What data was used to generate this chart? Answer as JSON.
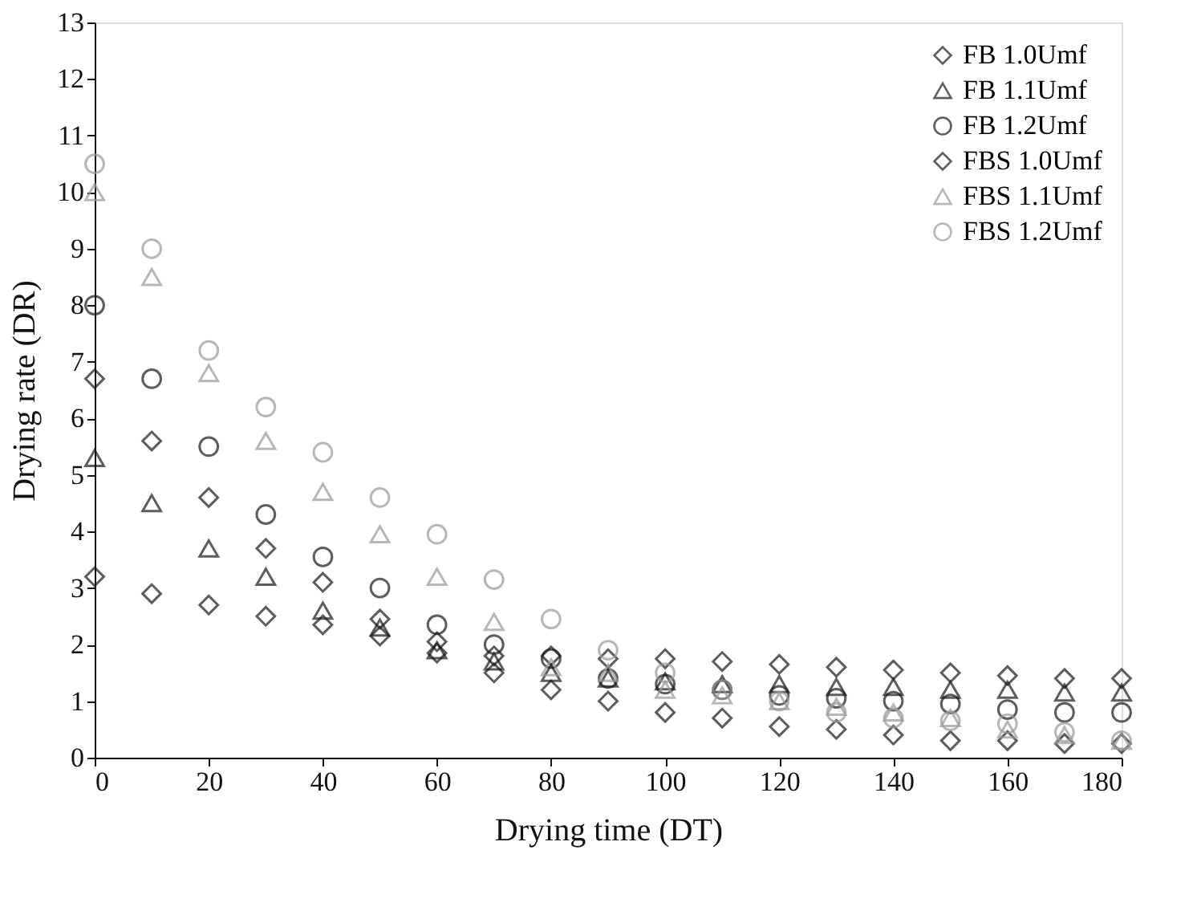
{
  "chart_data": {
    "type": "scatter",
    "xlabel": "Drying time (DT)",
    "ylabel": "Drying rate (DR)",
    "x": [
      0,
      10,
      20,
      30,
      40,
      50,
      60,
      70,
      80,
      90,
      100,
      110,
      120,
      130,
      140,
      150,
      160,
      170,
      180
    ],
    "xlim": [
      0,
      180
    ],
    "xticks": [
      0,
      20,
      40,
      60,
      80,
      100,
      120,
      140,
      160,
      180
    ],
    "ylim": [
      0,
      13
    ],
    "yticks": [
      0,
      1,
      2,
      3,
      4,
      5,
      6,
      7,
      8,
      9,
      10,
      11,
      12,
      13
    ],
    "grid": false,
    "legend": "top right",
    "series": [
      {
        "name": "FB 1.0Umf",
        "color": "#1a1a1a",
        "marker": "diamond",
        "values": [
          3.2,
          2.9,
          2.7,
          2.5,
          2.35,
          2.15,
          1.85,
          1.5,
          1.2,
          1.0,
          0.8,
          0.7,
          0.55,
          0.5,
          0.4,
          0.3,
          0.3,
          0.25,
          0.25
        ]
      },
      {
        "name": "FB 1.1Umf",
        "color": "#1a1a1a",
        "marker": "triangle",
        "values": [
          5.3,
          4.5,
          3.7,
          3.2,
          2.6,
          2.3,
          1.9,
          1.7,
          1.5,
          1.4,
          1.35,
          1.3,
          1.3,
          1.25,
          1.25,
          1.2,
          1.2,
          1.15,
          1.15
        ]
      },
      {
        "name": "FB 1.2Umf",
        "color": "#1a1a1a",
        "marker": "circle",
        "values": [
          8.0,
          6.7,
          5.5,
          4.3,
          3.55,
          3.0,
          2.35,
          2.0,
          1.75,
          1.4,
          1.3,
          1.2,
          1.1,
          1.05,
          1.0,
          0.95,
          0.85,
          0.8,
          0.8
        ]
      },
      {
        "name": "FBS 1.0Umf",
        "color": "#1a1a1a",
        "marker": "diamond",
        "values": [
          6.7,
          5.6,
          4.6,
          3.7,
          3.1,
          2.45,
          2.05,
          1.8,
          1.8,
          1.75,
          1.75,
          1.7,
          1.65,
          1.6,
          1.55,
          1.5,
          1.45,
          1.4,
          1.4
        ]
      },
      {
        "name": "FBS 1.1Umf",
        "color": "#9a9a9a",
        "marker": "triangle",
        "values": [
          10.0,
          8.5,
          6.8,
          5.6,
          4.7,
          3.95,
          3.2,
          2.4,
          1.6,
          1.5,
          1.2,
          1.1,
          1.0,
          0.9,
          0.8,
          0.7,
          0.5,
          0.4,
          0.3
        ]
      },
      {
        "name": "FBS 1.2Umf",
        "color": "#9a9a9a",
        "marker": "circle",
        "values": [
          10.5,
          9.0,
          7.2,
          6.2,
          5.4,
          4.6,
          3.95,
          3.15,
          2.45,
          1.9,
          1.5,
          1.2,
          1.0,
          0.8,
          0.7,
          0.65,
          0.6,
          0.45,
          0.3
        ]
      }
    ]
  }
}
